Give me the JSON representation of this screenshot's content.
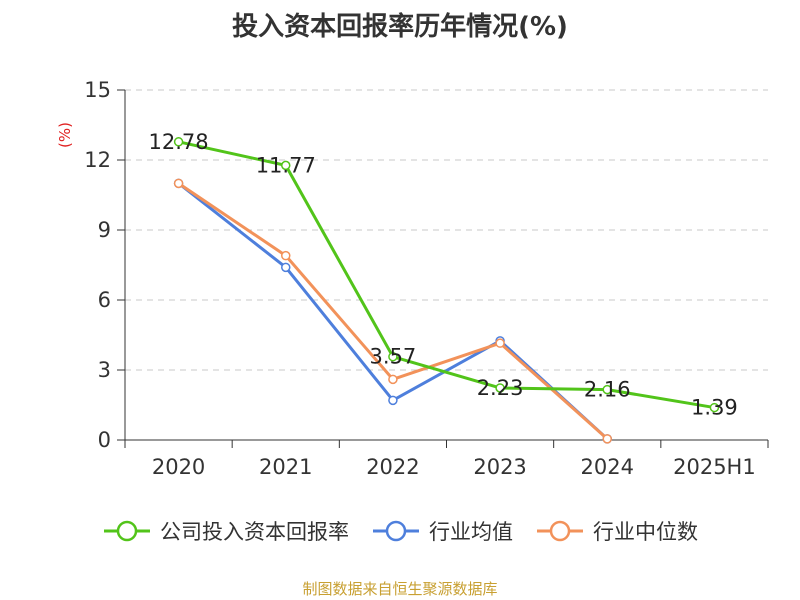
{
  "title": "投入资本回报率历年情况(%)",
  "unit_label": "(%)",
  "source_text": "制图数据来自恒生聚源数据库",
  "colors": {
    "company": "#52c41a",
    "industry_avg": "#4e7fdc",
    "industry_median": "#f2925a",
    "grid": "#c8c8c8",
    "axis": "#333333",
    "unit_label": "#e02020",
    "source": "#c8a032"
  },
  "chart_data": {
    "type": "line",
    "categories": [
      "2020",
      "2021",
      "2022",
      "2023",
      "2024",
      "2025H1"
    ],
    "ylim": [
      0,
      15
    ],
    "yticks": [
      0,
      3,
      6,
      9,
      12,
      15
    ],
    "ytick_labels": [
      "0",
      "3",
      "6",
      "9",
      "12",
      "15"
    ],
    "grid": true,
    "legend_position": "bottom",
    "series": [
      {
        "name": "公司投入资本回报率",
        "values": [
          12.78,
          11.77,
          3.57,
          2.23,
          2.16,
          1.39
        ],
        "data_labels": [
          "12.78",
          "11.77",
          "3.57",
          "2.23",
          "2.16",
          "1.39"
        ]
      },
      {
        "name": "行业均值",
        "values": [
          11.0,
          7.4,
          1.7,
          4.25,
          0.05,
          null
        ]
      },
      {
        "name": "行业中位数",
        "values": [
          11.0,
          7.9,
          2.6,
          4.15,
          0.05,
          null
        ]
      }
    ]
  }
}
